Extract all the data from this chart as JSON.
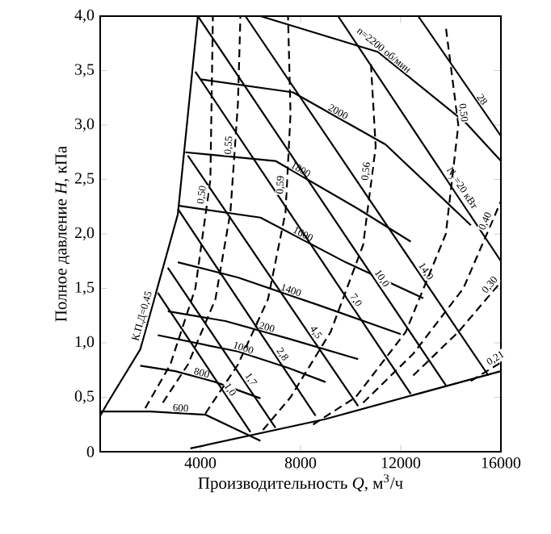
{
  "chart_data": {
    "type": "line",
    "marker": "none",
    "xlabel": "Производительность *Q*, м$^{3}$/ч",
    "ylabel": "Полное давление *H*, кПа",
    "xlim": [
      0,
      16000
    ],
    "ylim": [
      0,
      4
    ],
    "xticks": [
      4000,
      8000,
      12000,
      16000
    ],
    "yticks": [
      {
        "value": 0,
        "label": "0"
      },
      {
        "value": 0.5,
        "label": "0,5"
      },
      {
        "value": 1,
        "label": "1,0"
      },
      {
        "value": 1.5,
        "label": "1,5"
      },
      {
        "value": 2,
        "label": "2,0"
      },
      {
        "value": 2.5,
        "label": "2,5"
      },
      {
        "value": 3,
        "label": "3,0"
      },
      {
        "value": 3.5,
        "label": "3,5"
      },
      {
        "value": 4,
        "label": "4,0"
      }
    ],
    "series": [
      {
        "name": "600",
        "color": "#000000",
        "x": [
          0,
          2000,
          4200,
          6400
        ],
        "values": [
          0.37,
          0.37,
          0.34,
          0.1
        ]
      },
      {
        "name": "800",
        "color": "#000000",
        "x": [
          1600,
          3000,
          4600,
          6400
        ],
        "values": [
          0.79,
          0.74,
          0.64,
          0.49
        ]
      },
      {
        "name": "1000",
        "color": "#000000",
        "x": [
          2300,
          5500,
          7500,
          9000
        ],
        "values": [
          1.07,
          0.92,
          0.77,
          0.64
        ]
      },
      {
        "name": "1200",
        "color": "#000000",
        "x": [
          2700,
          5000,
          7500,
          10300
        ],
        "values": [
          1.29,
          1.2,
          1.04,
          0.85
        ]
      },
      {
        "name": "1400",
        "color": "#000000",
        "x": [
          3100,
          5500,
          8800,
          12000
        ],
        "values": [
          1.74,
          1.6,
          1.34,
          1.08
        ]
      },
      {
        "name": "1600",
        "color": "#000000",
        "x": [
          3100,
          6400,
          9800,
          12900
        ],
        "values": [
          2.26,
          2.15,
          1.74,
          1.41
        ]
      },
      {
        "name": "1800",
        "color": "#000000",
        "x": [
          3400,
          7000,
          10300,
          12400
        ],
        "values": [
          2.75,
          2.67,
          2.23,
          1.93
        ]
      },
      {
        "name": "2000",
        "color": "#000000",
        "x": [
          4000,
          7700,
          11400,
          14800
        ],
        "values": [
          3.42,
          3.3,
          2.82,
          2.08
        ]
      },
      {
        "name": "n=2200 об/мин",
        "color": "#000000",
        "x": [
          6400,
          11100,
          14600,
          16000
        ],
        "values": [
          4.0,
          3.67,
          3.02,
          2.67
        ]
      },
      {
        "name": "1,0",
        "color": "#000000",
        "x": [
          2300,
          6000
        ],
        "values": [
          1.46,
          0.18
        ]
      },
      {
        "name": "1,7",
        "color": "#000000",
        "x": [
          2700,
          7000
        ],
        "values": [
          1.69,
          0.22
        ]
      },
      {
        "name": "2,8",
        "color": "#000000",
        "x": [
          3100,
          8600
        ],
        "values": [
          2.23,
          0.33
        ]
      },
      {
        "name": "4,5",
        "color": "#000000",
        "x": [
          3500,
          10300
        ],
        "values": [
          2.72,
          0.42
        ]
      },
      {
        "name": "7,0",
        "color": "#000000",
        "x": [
          3800,
          12400
        ],
        "values": [
          3.49,
          0.53
        ]
      },
      {
        "name": "10,0",
        "color": "#000000",
        "x": [
          3900,
          13800
        ],
        "values": [
          4.0,
          0.61
        ]
      },
      {
        "name": "14,0",
        "color": "#000000",
        "x": [
          5800,
          15500
        ],
        "values": [
          4.0,
          0.7
        ]
      },
      {
        "name": "N$_{у}$=20 кВт",
        "color": "#000000",
        "x": [
          9500,
          16000
        ],
        "values": [
          4.0,
          1.75
        ]
      },
      {
        "name": "28",
        "color": "#000000",
        "x": [
          12700,
          16000
        ],
        "values": [
          4.0,
          2.9
        ]
      },
      {
        "name": "К.П.Д=0,45",
        "color": "#000000",
        "x": [
          0,
          300,
          1600,
          3100,
          3900
        ],
        "values": [
          0.33,
          0.45,
          0.94,
          2.18,
          4.0
        ]
      },
      {
        "name": "0,50",
        "color": "#000000",
        "line_style": "dashed",
        "x": [
          1800,
          2800,
          3800,
          4400,
          4500
        ],
        "values": [
          0.4,
          0.8,
          1.5,
          2.5,
          4.0
        ]
      },
      {
        "name": "0,55",
        "color": "#000000",
        "line_style": "dashed",
        "x": [
          2500,
          3500,
          4600,
          5200,
          5500,
          5600
        ],
        "values": [
          0.45,
          0.8,
          1.4,
          2.2,
          3.2,
          4.0
        ]
      },
      {
        "name": "0,59",
        "color": "#000000",
        "line_style": "dashed",
        "x": [
          4200,
          5500,
          6700,
          7400,
          7600,
          7500
        ],
        "values": [
          0.35,
          0.8,
          1.4,
          2.2,
          3.1,
          4.0
        ]
      },
      {
        "name": "0,56",
        "color": "#000000",
        "line_style": "dashed",
        "x": [
          6500,
          7600,
          9200,
          10500,
          11000,
          10800
        ],
        "values": [
          0.2,
          0.5,
          1.1,
          1.9,
          2.8,
          3.6
        ]
      },
      {
        "name": "0,50",
        "color": "#000000",
        "line_style": "dashed",
        "x": [
          8500,
          10200,
          12200,
          13800,
          14300,
          13800
        ],
        "values": [
          0.25,
          0.5,
          1.1,
          2.0,
          3.0,
          3.9
        ]
      },
      {
        "name": "0,40",
        "color": "#000000",
        "line_style": "dashed",
        "x": [
          10500,
          12500,
          14500,
          16000
        ],
        "values": [
          0.45,
          0.9,
          1.5,
          2.3
        ]
      },
      {
        "name": "0,30",
        "color": "#000000",
        "line_style": "dashed",
        "x": [
          12500,
          14300,
          16000
        ],
        "values": [
          0.7,
          1.1,
          1.56
        ]
      },
      {
        "name": "0,21",
        "color": "#000000",
        "line_style": "dashed",
        "x": [
          14800,
          16000
        ],
        "values": [
          0.65,
          0.82
        ]
      },
      {
        "color": "#000000",
        "x": [
          3600,
          9000,
          16000
        ],
        "values": [
          0.03,
          0.3,
          0.74
        ]
      }
    ]
  }
}
